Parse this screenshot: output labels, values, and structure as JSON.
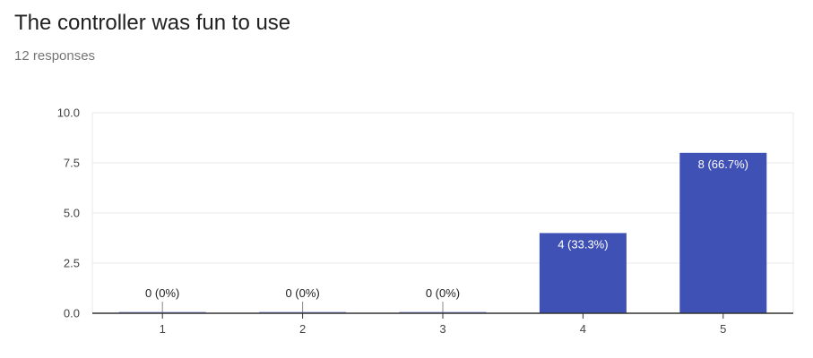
{
  "header": {
    "title": "The controller was fun to use",
    "responses": "12 responses"
  },
  "chart_data": {
    "type": "bar",
    "categories": [
      "1",
      "2",
      "3",
      "4",
      "5"
    ],
    "values": [
      0,
      0,
      0,
      4,
      8
    ],
    "data_labels": [
      "0 (0%)",
      "0 (0%)",
      "0 (0%)",
      "4 (33.3%)",
      "8 (66.7%)"
    ],
    "yticks": [
      "0.0",
      "2.5",
      "5.0",
      "7.5",
      "10.0"
    ],
    "ylim": [
      0,
      10
    ],
    "grid": true,
    "legend": "none",
    "title": "The controller was fun to use",
    "xlabel": "",
    "ylabel": "",
    "colors": {
      "bar": "#3f51b5",
      "gridline": "#e8e8e8",
      "axis": "#333333",
      "label_outside": "#212121",
      "label_inside": "#ffffff"
    }
  }
}
